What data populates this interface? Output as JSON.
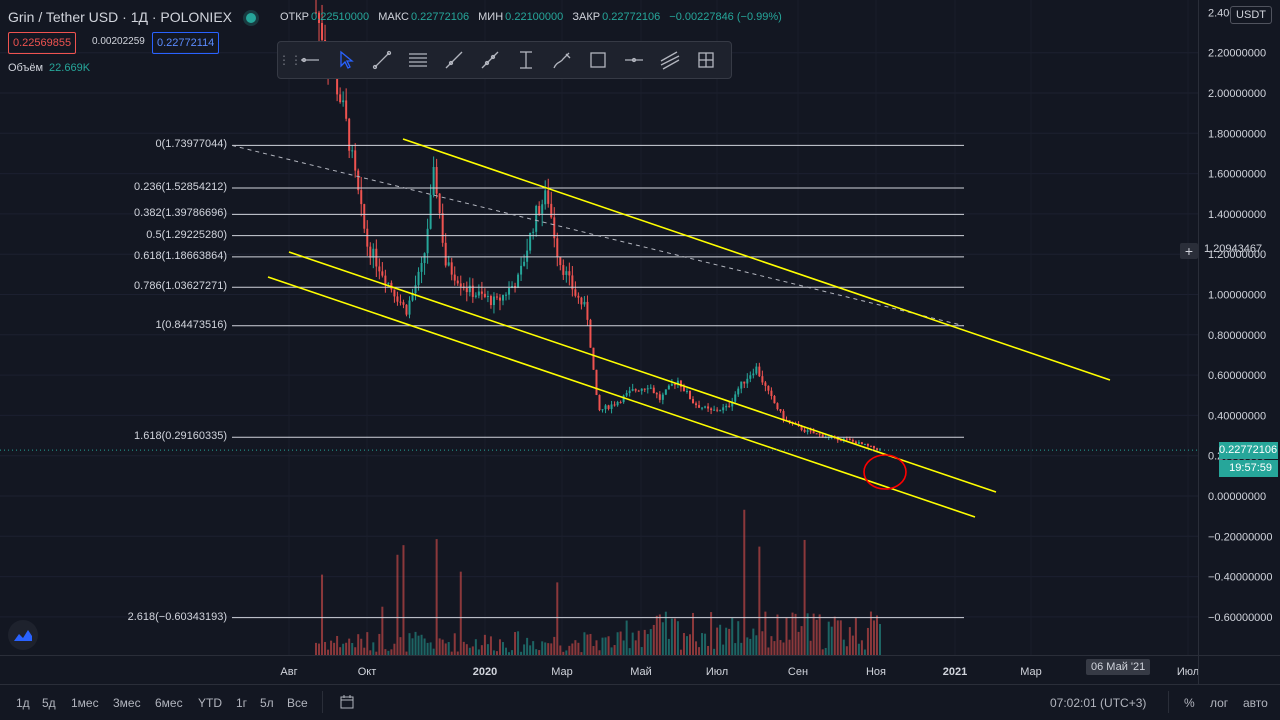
{
  "header": {
    "symbol": "Grin / Tether USD",
    "interval": "1Д",
    "exchange": "POLONIEX",
    "ohlc": [
      {
        "label": "ОТКР",
        "value": "0.22510000"
      },
      {
        "label": "МАКС",
        "value": "0.22772106"
      },
      {
        "label": "МИН",
        "value": "0.22100000"
      },
      {
        "label": "ЗАКР",
        "value": "0.22772106"
      }
    ],
    "change": "−0.00227846 (−0.99%)",
    "bid": "0.22569855",
    "spread": "0.00202259",
    "ask": "0.22772114",
    "volume_label": "Объём",
    "volume_value": "22.669K"
  },
  "toolbar": {
    "tools": [
      "horizontal-ray",
      "cursor",
      "trend-line",
      "parallel-channel",
      "ray",
      "extended-line",
      "price-range",
      "brush",
      "rectangle",
      "horizontal-line",
      "fib-channel",
      "fib-retracement"
    ],
    "active": "cursor"
  },
  "right_scale": {
    "currency_badge": "USDT",
    "top_partial_label": "2.40000000",
    "last_price": "0.22772106",
    "countdown": "19:57:59",
    "crosshair_price": "1.20943467",
    "crosshair_symbol": "+"
  },
  "bottom_bar": {
    "timeframes": [
      "1д",
      "5д",
      "1мес",
      "3мес",
      "6мес",
      "YTD",
      "1г",
      "5л",
      "Все"
    ],
    "time": "07:02:01 (UTC+3)",
    "percent": "%",
    "log": "лог",
    "auto": "авто"
  },
  "colors": {
    "background": "#131722",
    "up": "#26a69a",
    "down": "#ef5350",
    "channel": "#ffff00",
    "fib_line": "#d1d4dc",
    "highlight_circle": "#ff0000"
  },
  "chart_data": {
    "type": "candlestick",
    "instrument": "Grin / Tether USD",
    "x_axis": {
      "labels": [
        "Авг",
        "Окт",
        "2020",
        "Мар",
        "Май",
        "Июл",
        "Сен",
        "Ноя",
        "2021",
        "Мар",
        "Июл"
      ],
      "cursor_date_label": "06 Май '21"
    },
    "y_axis": {
      "ylim": [
        -0.69,
        2.42
      ],
      "tick_values": [
        2.2,
        2.0,
        1.8,
        1.6,
        1.4,
        1.2,
        1.0,
        0.8,
        0.6,
        0.4,
        0.2,
        0.0,
        -0.2,
        -0.4,
        -0.6
      ],
      "tick_labels": [
        "2.20000000",
        "2.00000000",
        "1.80000000",
        "1.60000000",
        "1.40000000",
        "1.20000000",
        "1.00000000",
        "0.80000000",
        "0.60000000",
        "0.40000000",
        "0.20000000",
        "0.00000000",
        "−0.20000000",
        "−0.40000000",
        "−0.60000000"
      ]
    },
    "fibonacci_levels": [
      {
        "ratio": "0",
        "price": 1.73977044,
        "label": "0(1.73977044)"
      },
      {
        "ratio": "0.236",
        "price": 1.52854212,
        "label": "0.236(1.52854212)"
      },
      {
        "ratio": "0.382",
        "price": 1.39786696,
        "label": "0.382(1.39786696)"
      },
      {
        "ratio": "0.5",
        "price": 1.2922528,
        "label": "0.5(1.29225280)"
      },
      {
        "ratio": "0.618",
        "price": 1.18663864,
        "label": "0.618(1.18663864)"
      },
      {
        "ratio": "0.786",
        "price": 1.03627271,
        "label": "0.786(1.03627271)"
      },
      {
        "ratio": "1",
        "price": 0.84473516,
        "label": "1(0.84473516)"
      },
      {
        "ratio": "1.618",
        "price": 0.29160335,
        "label": "1.618(0.29160335)"
      },
      {
        "ratio": "2.618",
        "price": -0.60343193,
        "label": "2.618(−0.60343193)"
      }
    ],
    "price_path": [
      [
        0.0,
        2.4
      ],
      [
        0.05,
        1.9
      ],
      [
        0.09,
        1.25
      ],
      [
        0.13,
        1.05
      ],
      [
        0.16,
        0.92
      ],
      [
        0.19,
        1.15
      ],
      [
        0.21,
        1.62
      ],
      [
        0.23,
        1.15
      ],
      [
        0.27,
        1.02
      ],
      [
        0.32,
        0.96
      ],
      [
        0.36,
        1.08
      ],
      [
        0.39,
        1.4
      ],
      [
        0.41,
        1.5
      ],
      [
        0.43,
        1.18
      ],
      [
        0.46,
        1.0
      ],
      [
        0.48,
        0.92
      ],
      [
        0.5,
        0.42
      ],
      [
        0.53,
        0.46
      ],
      [
        0.56,
        0.52
      ],
      [
        0.59,
        0.55
      ],
      [
        0.61,
        0.48
      ],
      [
        0.64,
        0.58
      ],
      [
        0.67,
        0.46
      ],
      [
        0.7,
        0.42
      ],
      [
        0.73,
        0.44
      ],
      [
        0.75,
        0.54
      ],
      [
        0.78,
        0.64
      ],
      [
        0.8,
        0.52
      ],
      [
        0.83,
        0.38
      ],
      [
        0.87,
        0.32
      ],
      [
        0.91,
        0.29
      ],
      [
        0.94,
        0.28
      ],
      [
        1.0,
        0.228
      ]
    ]
  }
}
